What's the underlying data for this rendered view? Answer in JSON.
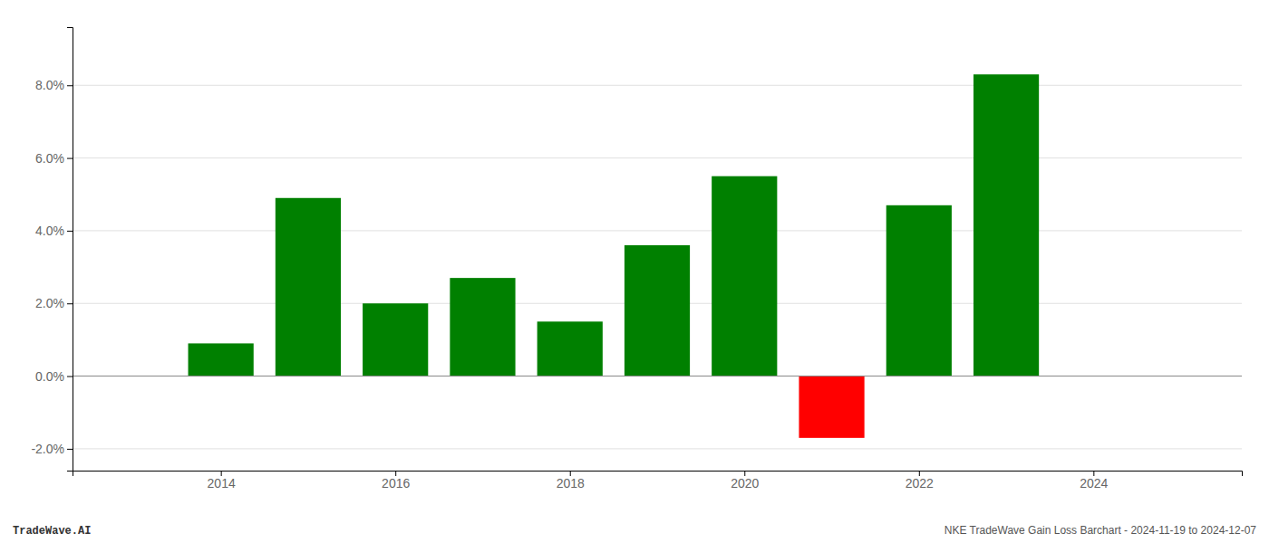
{
  "chart_data": {
    "type": "bar",
    "x": [
      2014,
      2015,
      2016,
      2017,
      2018,
      2019,
      2020,
      2021,
      2022,
      2023
    ],
    "values": [
      0.009,
      0.049,
      0.02,
      0.027,
      0.015,
      0.036,
      0.055,
      -0.017,
      0.047,
      0.083
    ],
    "colors": [
      "#008000",
      "#008000",
      "#008000",
      "#008000",
      "#008000",
      "#008000",
      "#008000",
      "#ff0000",
      "#008000",
      "#008000"
    ],
    "xlim": [
      2012.3,
      2025.7
    ],
    "xticks": [
      2014,
      2016,
      2018,
      2020,
      2022,
      2024
    ],
    "ylim": [
      -0.026,
      0.096
    ],
    "yticks": [
      {
        "value": -0.02,
        "label": "-2.0%"
      },
      {
        "value": 0.0,
        "label": "0.0%"
      },
      {
        "value": 0.02,
        "label": "2.0%"
      },
      {
        "value": 0.04,
        "label": "4.0%"
      },
      {
        "value": 0.06,
        "label": "6.0%"
      },
      {
        "value": 0.08,
        "label": "8.0%"
      }
    ],
    "grid": true,
    "annotations": [
      "TradeWave.AI",
      "NKE TradeWave Gain Loss Barchart - 2024-11-19 to 2024-12-07"
    ]
  }
}
